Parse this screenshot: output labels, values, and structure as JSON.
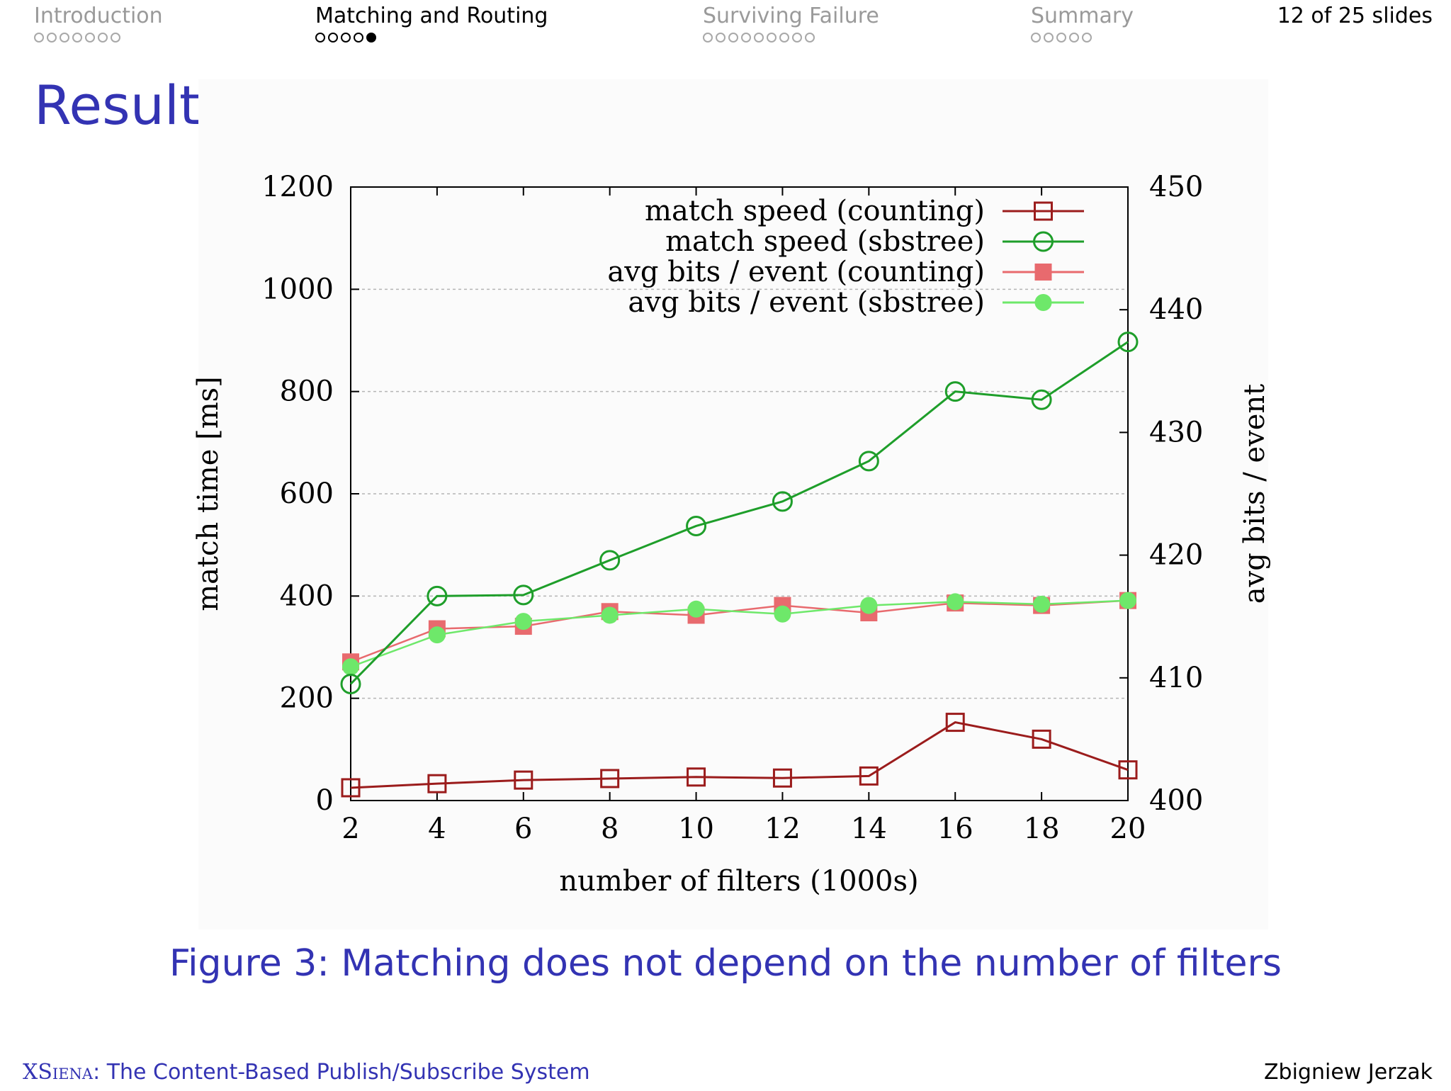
{
  "nav": {
    "sections": [
      {
        "title": "Introduction",
        "dots": 7,
        "filled": -1,
        "active": false
      },
      {
        "title": "Matching and Routing",
        "dots": 5,
        "filled": 4,
        "active": true
      },
      {
        "title": "Surviving Failure",
        "dots": 9,
        "filled": -1,
        "active": false
      },
      {
        "title": "Summary",
        "dots": 5,
        "filled": -1,
        "active": false
      }
    ],
    "slide_counter": "12 of 25 slides"
  },
  "frame": {
    "title": "Result"
  },
  "caption": "Figure 3: Matching does not depend on the number of filters",
  "footer": {
    "system_name": "XSiena",
    "subtitle": ": The Content-Based Publish/Subscribe System",
    "author": "Zbigniew Jerzak"
  },
  "colors": {
    "theme_blue": "#3333b3",
    "counting_speed": "#9b1c1c",
    "sbstree_speed": "#1e9e2a",
    "counting_bits": "#e86a6e",
    "sbstree_bits": "#6ee86a"
  },
  "chart_data": {
    "type": "line",
    "xlabel": "number of filters (1000s)",
    "ylabel": "match time [ms]",
    "y2label": "avg bits / event",
    "x": [
      2,
      4,
      6,
      8,
      10,
      12,
      14,
      16,
      18,
      20
    ],
    "xlim": [
      2,
      20
    ],
    "ylim": [
      0,
      1200
    ],
    "y2lim": [
      400,
      450
    ],
    "xticks": [
      "2",
      "4",
      "6",
      "8",
      "10",
      "12",
      "14",
      "16",
      "18",
      "20"
    ],
    "yticks": [
      "0",
      "200",
      "400",
      "600",
      "800",
      "1000",
      "1200"
    ],
    "y2ticks": [
      "400",
      "410",
      "420",
      "430",
      "440",
      "450"
    ],
    "grid": true,
    "legend_position": "top-right",
    "series": [
      {
        "name": "match speed (counting)",
        "axis": "y1",
        "marker": "open-square",
        "color": "#9b1c1c",
        "values": [
          25,
          33,
          40,
          43,
          46,
          44,
          48,
          153,
          120,
          60
        ]
      },
      {
        "name": "match speed (sbstree)",
        "axis": "y1",
        "marker": "open-circle",
        "color": "#1e9e2a",
        "values": [
          228,
          400,
          402,
          470,
          537,
          585,
          664,
          800,
          784,
          897
        ]
      },
      {
        "name": "avg bits / event (counting)",
        "axis": "y2",
        "marker": "filled-square",
        "color": "#e86a6e",
        "values": [
          411.3,
          414.0,
          414.2,
          415.4,
          415.1,
          415.9,
          415.3,
          416.1,
          415.9,
          416.3
        ]
      },
      {
        "name": "avg bits / event (sbstree)",
        "axis": "y2",
        "marker": "filled-circle",
        "color": "#6ee86a",
        "values": [
          410.9,
          413.5,
          414.6,
          415.1,
          415.6,
          415.2,
          415.9,
          416.2,
          416.0,
          416.3
        ]
      }
    ]
  }
}
